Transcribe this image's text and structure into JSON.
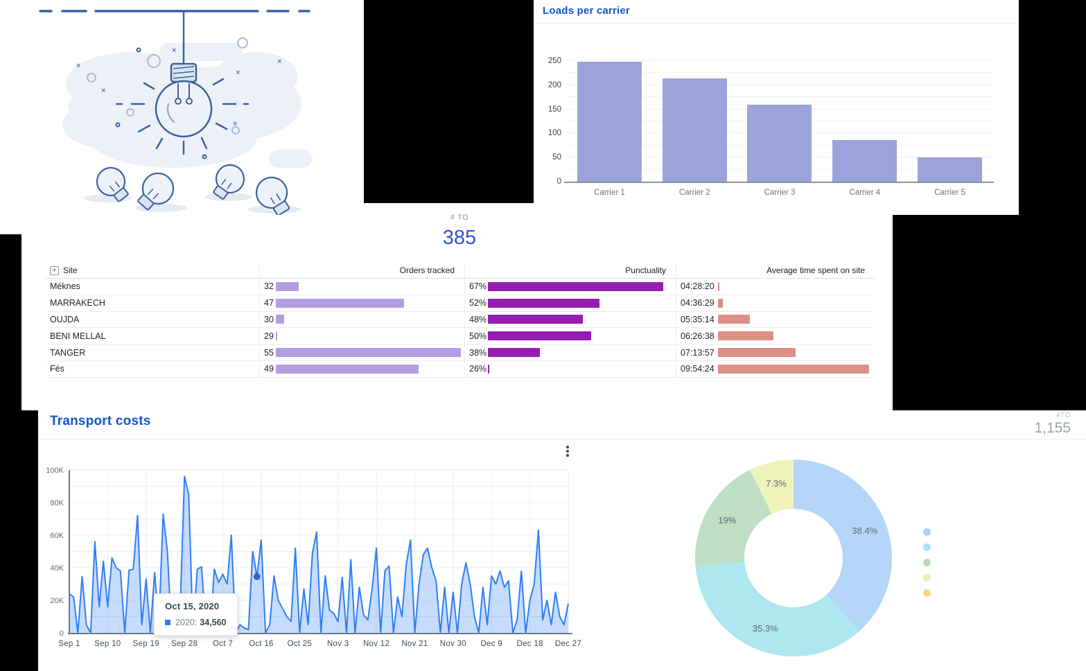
{
  "icons": {
    "expand": "+"
  },
  "loads_panel": {
    "title": "Loads per carrier"
  },
  "orders_panel": {
    "kpi_label": "# TO",
    "kpi_value": "385"
  },
  "transport_panel": {
    "title": "Transport costs",
    "kpi_label": "#TO",
    "kpi_value": "1,155",
    "tooltip": {
      "date": "Oct 15, 2020",
      "series_label": "2020:",
      "value": "34,560"
    }
  },
  "site_table": {
    "columns": {
      "site": "Site",
      "orders": "Orders tracked",
      "punctuality": "Punctuality",
      "avg_time": "Average time spent on site"
    },
    "rows": [
      {
        "site": "Méknes",
        "orders": 32,
        "punctuality": "67%",
        "avg_time": "04:28:20"
      },
      {
        "site": "MARRAKECH",
        "orders": 47,
        "punctuality": "52%",
        "avg_time": "04:36:29"
      },
      {
        "site": "OUJDA",
        "orders": 30,
        "punctuality": "48%",
        "avg_time": "05:35:14"
      },
      {
        "site": "BENI MELLAL",
        "orders": 29,
        "punctuality": "50%",
        "avg_time": "06:26:38"
      },
      {
        "site": "TANGER",
        "orders": 55,
        "punctuality": "38%",
        "avg_time": "07:13:57"
      },
      {
        "site": "Fés",
        "orders": 49,
        "punctuality": "26%",
        "avg_time": "09:54:24"
      }
    ],
    "bar_colors": {
      "orders": "#b49de0",
      "punctuality": "#951db0",
      "avg_time": "#dc9086"
    }
  },
  "chart_data": [
    {
      "type": "bar",
      "title": "Loads per carrier",
      "categories": [
        "Carrier 1",
        "Carrier 2",
        "Carrier 3",
        "Carrier 4",
        "Carrier 5"
      ],
      "values": [
        248,
        214,
        160,
        86,
        51
      ],
      "ylim": [
        0,
        250
      ],
      "yticks": [
        0,
        50,
        100,
        150,
        200,
        250
      ],
      "grid": true,
      "bar_color": "#9aa4da",
      "xlabel": "",
      "ylabel": ""
    },
    {
      "type": "area",
      "title": "Transport costs",
      "ylim": [
        0,
        100000
      ],
      "ytick_labels": [
        "0",
        "20K",
        "40K",
        "60K",
        "80K",
        "100K"
      ],
      "xtick_labels": [
        "Sep 1",
        "Sep 10",
        "Sep 19",
        "Sep 28",
        "Oct 7",
        "Oct 16",
        "Oct 25",
        "Nov 3",
        "Nov 12",
        "Nov 21",
        "Nov 30",
        "Dec 9",
        "Dec 18",
        "Dec 27"
      ],
      "xtick_indices": [
        0,
        9,
        18,
        27,
        36,
        45,
        54,
        63,
        72,
        81,
        90,
        99,
        108,
        117
      ],
      "series_name": "2020",
      "line_color": "#2e7ef5",
      "fill_opacity": 0.27,
      "grid": true,
      "values": [
        24000,
        22000,
        0,
        34500,
        5000,
        0,
        56000,
        16000,
        44000,
        16000,
        46000,
        40000,
        38000,
        0,
        38500,
        39000,
        72000,
        5000,
        33000,
        0,
        37000,
        5000,
        73000,
        50000,
        0,
        20000,
        15000,
        96000,
        85000,
        0,
        39000,
        40500,
        5000,
        0,
        39000,
        31000,
        36000,
        30000,
        60000,
        0,
        5000,
        3000,
        2000,
        50000,
        34560,
        57000,
        0,
        5000,
        35000,
        20000,
        15000,
        10000,
        7000,
        52000,
        0,
        27000,
        5000,
        49000,
        62000,
        0,
        35000,
        14000,
        12000,
        7000,
        34000,
        0,
        45000,
        0,
        28000,
        11000,
        8000,
        27000,
        52000,
        0,
        38000,
        41000,
        0,
        22000,
        10000,
        42000,
        57000,
        0,
        30000,
        48000,
        52000,
        40000,
        32000,
        0,
        28000,
        0,
        25000,
        0,
        30000,
        43000,
        30000,
        10000,
        0,
        28000,
        5000,
        35000,
        30000,
        38000,
        28000,
        32000,
        0,
        8000,
        38000,
        0,
        20000,
        30000,
        63000,
        8000,
        20000,
        5000,
        25000,
        10000,
        5000,
        18000
      ],
      "highlight": {
        "index": 44,
        "date": "Oct 15, 2020",
        "value": 34560,
        "marker_color": "#2a66cc"
      }
    },
    {
      "type": "pie",
      "donut": true,
      "slices": [
        {
          "label": "38.4%",
          "value": 38.4,
          "color": "#b4d5f8"
        },
        {
          "label": "35.3%",
          "value": 35.3,
          "color": "#aee7f0"
        },
        {
          "label": "19%",
          "value": 19.0,
          "color": "#bedfc1"
        },
        {
          "label": "7.3%",
          "value": 7.3,
          "color": "#eef3ba"
        }
      ],
      "legend_position": "right",
      "legend_dot_colors": [
        "#a9d2f8",
        "#a7e5f2",
        "#b7dcbb",
        "#e7f0b6",
        "#f6d688"
      ]
    }
  ]
}
